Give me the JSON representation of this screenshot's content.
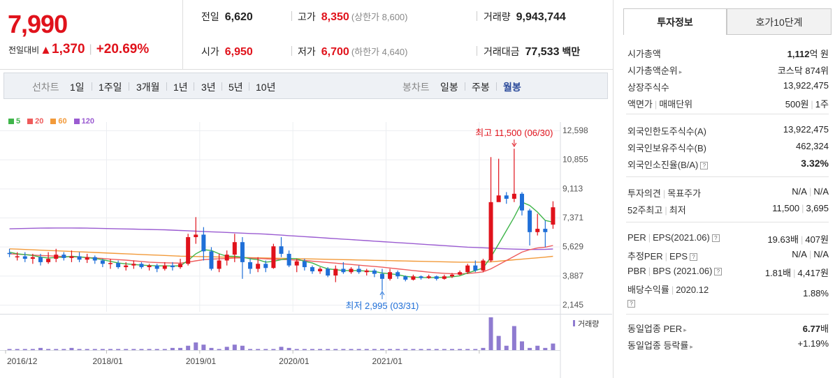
{
  "price": {
    "current": "7,990",
    "change_label": "전일대비",
    "change_icon": "up-triangle-icon",
    "change": "1,370",
    "change_pct": "+20.69%"
  },
  "quote": {
    "prev_label": "전일",
    "prev": "6,620",
    "high_label": "고가",
    "high": "8,350",
    "upper_limit": "(상한가 8,600)",
    "volume_label": "거래량",
    "volume": "9,943,744",
    "open_label": "시가",
    "open": "6,950",
    "low_label": "저가",
    "low": "6,700",
    "lower_limit": "(하한가 4,640)",
    "amount_label": "거래대금",
    "amount": "77,533",
    "amount_unit": "백만"
  },
  "periods": {
    "line_label": "선차트",
    "line_items": [
      "1일",
      "1주일",
      "3개월",
      "1년",
      "3년",
      "5년",
      "10년"
    ],
    "candle_label": "봉차트",
    "candle_items": [
      "일봉",
      "주봉",
      "월봉"
    ],
    "selected": "월봉"
  },
  "colors": {
    "up": "#e0121b",
    "down": "#1f6fd8",
    "ma5": "#3fb54a",
    "ma20": "#ee5b5b",
    "ma60": "#f29a3a",
    "ma120": "#9a5bd1",
    "volume": "#8f7bd0"
  },
  "chart_data": {
    "type": "candlestick",
    "legend": [
      {
        "name": "5",
        "color": "#3fb54a"
      },
      {
        "name": "20",
        "color": "#ee5b5b"
      },
      {
        "name": "60",
        "color": "#f29a3a"
      },
      {
        "name": "120",
        "color": "#9a5bd1"
      }
    ],
    "y_ticks": [
      "12,598",
      "10,855",
      "9,113",
      "7,371",
      "5,629",
      "3,887",
      "2,145"
    ],
    "ylim": [
      2145,
      12598
    ],
    "x_ticks": [
      "2016/12",
      "2018/01",
      "2019/01",
      "2020/01",
      "2021/01"
    ],
    "max_label": "최고 11,500 (06/30)",
    "min_label": "최저 2,995 (03/31)",
    "volume_label": "거래량",
    "candles": [
      [
        5250,
        5200,
        5500,
        5000
      ],
      [
        5000,
        5050,
        5300,
        4800
      ],
      [
        5050,
        4900,
        5300,
        4700
      ],
      [
        4900,
        5000,
        5200,
        4600
      ],
      [
        5000,
        4700,
        5200,
        4500
      ],
      [
        4700,
        4900,
        5300,
        4600
      ],
      [
        4900,
        5150,
        5500,
        4700
      ],
      [
        5150,
        4950,
        5300,
        4800
      ],
      [
        4950,
        5050,
        5400,
        4700
      ],
      [
        5050,
        4850,
        5300,
        4700
      ],
      [
        4850,
        5000,
        5200,
        4650
      ],
      [
        5000,
        4800,
        5100,
        4600
      ],
      [
        4800,
        4600,
        4900,
        4400
      ],
      [
        4600,
        4650,
        4900,
        4300
      ],
      [
        4650,
        4400,
        4800,
        4300
      ],
      [
        4400,
        4500,
        4700,
        4200
      ],
      [
        4500,
        4600,
        4800,
        4300
      ],
      [
        4600,
        4400,
        4700,
        4300
      ],
      [
        4400,
        4500,
        4600,
        4200
      ],
      [
        4500,
        4300,
        4600,
        4100
      ],
      [
        4300,
        4500,
        4700,
        4200
      ],
      [
        4500,
        4400,
        4700,
        4200
      ],
      [
        4400,
        4600,
        4900,
        4300
      ],
      [
        4600,
        6200,
        6400,
        4500
      ],
      [
        6200,
        6350,
        7400,
        5800
      ],
      [
        6350,
        5350,
        6800,
        4800
      ],
      [
        5350,
        4300,
        5600,
        4200
      ],
      [
        4300,
        4800,
        5200,
        4100
      ],
      [
        4800,
        5150,
        5400,
        4500
      ],
      [
        5150,
        5900,
        6400,
        4700
      ],
      [
        5900,
        4700,
        6200,
        3700
      ],
      [
        4700,
        4300,
        4900,
        4000
      ],
      [
        4300,
        4600,
        5000,
        4100
      ],
      [
        4600,
        4350,
        4800,
        4100
      ],
      [
        4350,
        5650,
        5800,
        4300
      ],
      [
        5650,
        5200,
        6200,
        5000
      ],
      [
        5200,
        4500,
        5400,
        4400
      ],
      [
        4500,
        4750,
        4900,
        4100
      ],
      [
        4750,
        4400,
        4900,
        4200
      ],
      [
        4400,
        4150,
        4500,
        4000
      ],
      [
        4150,
        4300,
        4400,
        4000
      ],
      [
        4300,
        3900,
        4400,
        3800
      ],
      [
        3900,
        4300,
        4500,
        3500
      ],
      [
        4300,
        4100,
        4700,
        4000
      ],
      [
        4100,
        4300,
        4400,
        4000
      ],
      [
        4300,
        4100,
        4500,
        4000
      ],
      [
        4100,
        4200,
        4300,
        3900
      ],
      [
        4200,
        4000,
        4300,
        3800
      ],
      [
        4000,
        3700,
        4300,
        2995
      ],
      [
        3700,
        4100,
        4300,
        3600
      ],
      [
        4100,
        3850,
        4200,
        3700
      ],
      [
        3850,
        3650,
        3900,
        3550
      ],
      [
        3650,
        3850,
        3950,
        3600
      ],
      [
        3850,
        3750,
        3900,
        3650
      ],
      [
        3750,
        3850,
        3950,
        3700
      ],
      [
        3850,
        3700,
        3900,
        3600
      ],
      [
        3700,
        3850,
        3950,
        3650
      ],
      [
        3850,
        3950,
        4050,
        3750
      ],
      [
        3950,
        4100,
        4200,
        3900
      ],
      [
        4100,
        4500,
        4600,
        4000
      ],
      [
        4500,
        4200,
        4800,
        4100
      ],
      [
        4200,
        4800,
        4900,
        4100
      ],
      [
        4800,
        8300,
        11000,
        4700
      ],
      [
        8300,
        8700,
        10900,
        8500
      ],
      [
        8700,
        8500,
        8900,
        8200
      ],
      [
        8500,
        8800,
        11500,
        8300
      ],
      [
        8800,
        7800,
        8900,
        7500
      ],
      [
        7800,
        6500,
        7900,
        5700
      ],
      [
        6500,
        6700,
        7600,
        6300
      ],
      [
        6700,
        6500,
        7200,
        5600
      ],
      [
        6950,
        7990,
        8350,
        6700
      ]
    ],
    "ma5": [
      5300,
      5200,
      5150,
      5100,
      5000,
      4950,
      4980,
      5000,
      5050,
      5020,
      4970,
      4920,
      4850,
      4750,
      4650,
      4600,
      4560,
      4520,
      4500,
      4480,
      4480,
      4470,
      4480,
      4800,
      5200,
      5450,
      5400,
      5200,
      5050,
      5050,
      5000,
      4900,
      4850,
      4700,
      4750,
      4850,
      4920,
      4900,
      4750,
      4650,
      4450,
      4300,
      4250,
      4200,
      4200,
      4200,
      4160,
      4140,
      4050,
      4000,
      3950,
      3850,
      3800,
      3780,
      3770,
      3780,
      3790,
      3820,
      3880,
      4050,
      4200,
      4350,
      5000,
      5800,
      6600,
      7400,
      8300,
      8100,
      7700,
      7200,
      7100
    ],
    "ma20": [
      5200,
      5180,
      5150,
      5120,
      5100,
      5080,
      5060,
      5040,
      5020,
      5000,
      4980,
      4950,
      4920,
      4880,
      4850,
      4820,
      4780,
      4740,
      4700,
      4680,
      4660,
      4650,
      4640,
      4700,
      4780,
      4850,
      4880,
      4900,
      4920,
      4950,
      4960,
      4950,
      4930,
      4900,
      4880,
      4860,
      4850,
      4820,
      4800,
      4760,
      4720,
      4680,
      4640,
      4600,
      4560,
      4520,
      4480,
      4440,
      4400,
      4350,
      4300,
      4250,
      4200,
      4150,
      4100,
      4060,
      4030,
      4010,
      4000,
      4020,
      4060,
      4120,
      4300,
      4550,
      4800,
      5050,
      5300,
      5450,
      5550,
      5600,
      5700
    ],
    "ma60": [
      5500,
      5480,
      5460,
      5440,
      5420,
      5400,
      5380,
      5360,
      5340,
      5320,
      5300,
      5280,
      5260,
      5240,
      5220,
      5200,
      5180,
      5160,
      5140,
      5120,
      5100,
      5080,
      5060,
      5050,
      5040,
      5030,
      5020,
      5010,
      5000,
      4990,
      4980,
      4970,
      4960,
      4950,
      4940,
      4930,
      4920,
      4910,
      4900,
      4890,
      4880,
      4870,
      4860,
      4850,
      4840,
      4830,
      4820,
      4810,
      4800,
      4790,
      4780,
      4770,
      4760,
      4750,
      4740,
      4730,
      4720,
      4710,
      4700,
      4700,
      4700,
      4700,
      4720,
      4760,
      4800,
      4840,
      4880,
      4920,
      4960,
      5000,
      5050
    ],
    "ma120": [
      6700,
      6710,
      6720,
      6730,
      6740,
      6745,
      6750,
      6750,
      6750,
      6745,
      6740,
      6730,
      6720,
      6710,
      6700,
      6690,
      6680,
      6670,
      6660,
      6650,
      6640,
      6620,
      6600,
      6580,
      6560,
      6540,
      6520,
      6500,
      6480,
      6460,
      6440,
      6420,
      6400,
      6380,
      6350,
      6320,
      6290,
      6260,
      6230,
      6200,
      6170,
      6140,
      6110,
      6080,
      6050,
      6020,
      5990,
      5960,
      5930,
      5900,
      5870,
      5840,
      5810,
      5780,
      5750,
      5720,
      5690,
      5660,
      5630,
      5600,
      5580,
      5560,
      5540,
      5520,
      5500,
      5480,
      5470,
      5460,
      5460,
      5470,
      5490
    ],
    "volume": [
      1,
      1,
      1,
      1,
      2,
      1,
      1,
      1,
      2,
      1,
      1,
      1,
      1,
      1,
      1,
      1,
      1,
      1,
      1,
      1,
      1,
      2,
      2,
      4,
      7,
      5,
      2,
      1,
      3,
      5,
      4,
      1,
      1,
      1,
      1,
      3,
      2,
      1,
      1,
      1,
      1,
      1,
      1,
      1,
      1,
      1,
      1,
      1,
      1,
      1,
      1,
      1,
      1,
      1,
      1,
      1,
      1,
      1,
      1,
      1,
      1,
      2,
      30,
      13,
      4,
      22,
      8,
      2,
      4,
      2,
      6
    ]
  },
  "info": {
    "tabs": [
      "투자정보",
      "호가10단계"
    ],
    "sec1": [
      {
        "k": "시가총액",
        "v_bold": "1,112",
        "v": "억 원"
      },
      {
        "k": "시가총액순위",
        "v": "코스닥 874위"
      },
      {
        "k": "상장주식수",
        "v": "13,922,475"
      },
      {
        "k": "액면가",
        "k2": "매매단위",
        "v": "500원",
        "v2": "1주"
      }
    ],
    "sec2": [
      {
        "k": "외국인한도주식수(A)",
        "v": "13,922,475"
      },
      {
        "k": "외국인보유주식수(B)",
        "v": "462,324"
      },
      {
        "k": "외국인소진율(B/A)",
        "v": "3.32%"
      }
    ],
    "sec3": [
      {
        "k": "투자의견",
        "k2": "목표주가",
        "v": "N/A",
        "v2": "N/A"
      },
      {
        "k": "52주최고",
        "k2": "최저",
        "v": "11,500",
        "v2": "3,695"
      }
    ],
    "sec4": [
      {
        "k": "PER",
        "k2": "EPS(2021.06)",
        "v": "19.63배",
        "v2": "407원"
      },
      {
        "k": "추정PER",
        "k2": "EPS",
        "v": "N/A",
        "v2": "N/A"
      },
      {
        "k": "PBR",
        "k2": "BPS (2021.06)",
        "v": "1.81배",
        "v2": "4,417원"
      },
      {
        "k": "배당수익률",
        "k2": "2020.12",
        "v": "1.88%"
      }
    ],
    "sec5": [
      {
        "k": "동일업종 PER",
        "v": "6.77",
        "unit": "배"
      },
      {
        "k": "동일업종 등락률",
        "v": "+1.19%"
      }
    ],
    "qmark": "?"
  }
}
